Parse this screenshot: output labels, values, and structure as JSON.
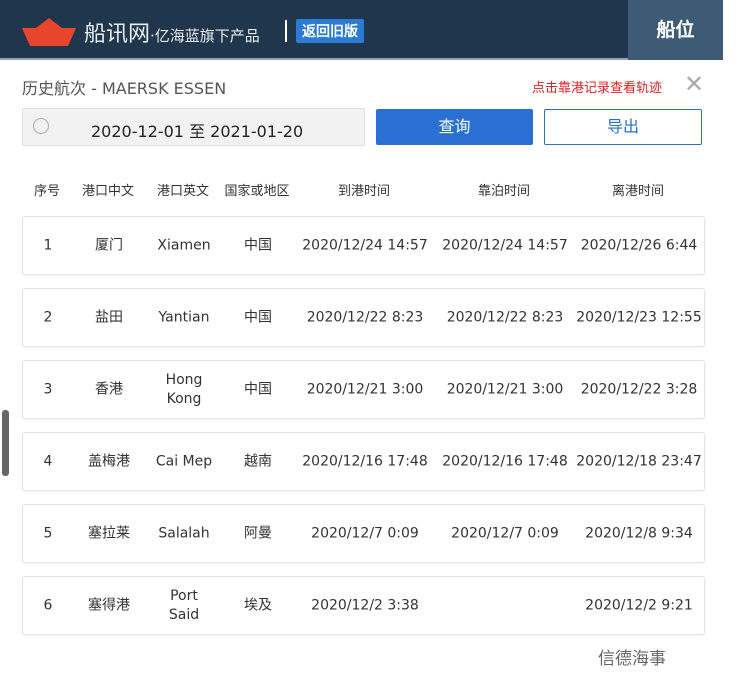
{
  "header": {
    "brand": "船讯网",
    "sub": "·亿海蓝旗下产品",
    "old_version": "返回旧版",
    "position": "船位"
  },
  "title": "历史航次 - MAERSK ESSEN",
  "hint": "点击靠港记录查看轨迹",
  "date_range": "2020-12-01 至 2021-01-20",
  "buttons": {
    "query": "查询",
    "export": "导出"
  },
  "columns": [
    "序号",
    "港口中文",
    "港口英文",
    "国家或地区",
    "到港时间",
    "靠泊时间",
    "离港时间"
  ],
  "rows": [
    [
      "1",
      "厦门",
      "Xiamen",
      "中国",
      "2020/12/24 14:57",
      "2020/12/24 14:57",
      "2020/12/26 6:44"
    ],
    [
      "2",
      "盐田",
      "Yantian",
      "中国",
      "2020/12/22 8:23",
      "2020/12/22 8:23",
      "2020/12/23 12:55"
    ],
    [
      "3",
      "香港",
      "Hong Kong",
      "中国",
      "2020/12/21 3:00",
      "2020/12/21 3:00",
      "2020/12/22 3:28"
    ],
    [
      "4",
      "盖梅港",
      "Cai Mep",
      "越南",
      "2020/12/16 17:48",
      "2020/12/16 17:48",
      "2020/12/18 23:47"
    ],
    [
      "5",
      "塞拉莱",
      "Salalah",
      "阿曼",
      "2020/12/7 0:09",
      "2020/12/7 0:09",
      "2020/12/8 9:34"
    ],
    [
      "6",
      "塞得港",
      "Port Said",
      "埃及",
      "2020/12/2 3:38",
      "",
      "2020/12/2 9:21"
    ]
  ],
  "watermark": "信德海事",
  "colors": {
    "header": "#20364c",
    "accent": "#2a70d2",
    "hint": "#e02020",
    "logo": "#e8452c"
  }
}
